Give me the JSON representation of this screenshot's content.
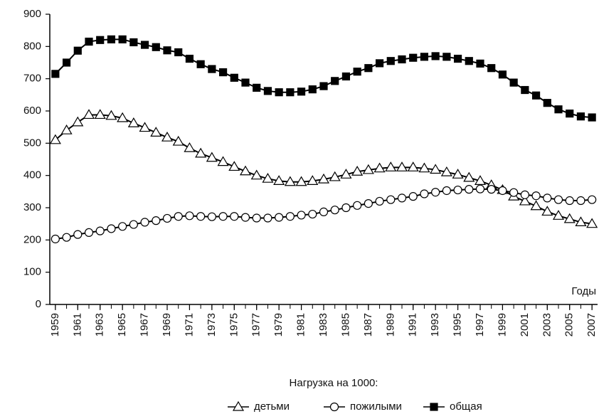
{
  "chart_data": {
    "type": "line",
    "xlabel": "Годы",
    "legend_title": "Нагрузка на 1000:",
    "legend": "bottom",
    "x": [
      1959,
      1960,
      1961,
      1962,
      1963,
      1964,
      1965,
      1966,
      1967,
      1968,
      1969,
      1970,
      1971,
      1972,
      1973,
      1974,
      1975,
      1976,
      1977,
      1978,
      1979,
      1980,
      1981,
      1982,
      1983,
      1984,
      1985,
      1986,
      1987,
      1988,
      1989,
      1990,
      1991,
      1992,
      1993,
      1994,
      1995,
      1996,
      1997,
      1998,
      1999,
      2000,
      2001,
      2002,
      2003,
      2004,
      2005,
      2006,
      2007
    ],
    "series": [
      {
        "name": "детьми",
        "color": "#000000",
        "marker": "triangle",
        "values": [
          510,
          540,
          565,
          588,
          588,
          585,
          578,
          562,
          548,
          533,
          518,
          505,
          485,
          468,
          455,
          442,
          427,
          413,
          400,
          390,
          383,
          380,
          380,
          383,
          388,
          395,
          403,
          412,
          417,
          422,
          425,
          425,
          425,
          422,
          418,
          410,
          403,
          393,
          383,
          370,
          355,
          335,
          320,
          305,
          288,
          275,
          265,
          255,
          250
        ]
      },
      {
        "name": "пожилыми",
        "color": "#000000",
        "marker": "circle",
        "values": [
          203,
          208,
          217,
          223,
          228,
          235,
          242,
          248,
          255,
          260,
          267,
          273,
          275,
          273,
          272,
          273,
          273,
          270,
          268,
          268,
          270,
          273,
          277,
          280,
          287,
          293,
          300,
          307,
          313,
          320,
          325,
          330,
          335,
          343,
          348,
          353,
          355,
          357,
          358,
          357,
          353,
          347,
          340,
          337,
          330,
          325,
          322,
          322,
          325
        ]
      },
      {
        "name": "общая",
        "color": "#000000",
        "marker": "square",
        "values": [
          715,
          750,
          787,
          815,
          820,
          822,
          822,
          813,
          805,
          798,
          788,
          782,
          762,
          745,
          730,
          720,
          703,
          688,
          672,
          662,
          658,
          658,
          660,
          667,
          677,
          693,
          707,
          722,
          733,
          748,
          755,
          760,
          765,
          768,
          770,
          768,
          762,
          755,
          747,
          733,
          713,
          688,
          665,
          648,
          625,
          605,
          592,
          583,
          580
        ]
      }
    ],
    "xlim": [
      1958.5,
      2007.5
    ],
    "xticks": [
      1959,
      1961,
      1963,
      1965,
      1967,
      1969,
      1971,
      1973,
      1975,
      1977,
      1979,
      1981,
      1983,
      1985,
      1987,
      1989,
      1991,
      1993,
      1995,
      1997,
      1999,
      2001,
      2003,
      2005,
      2007
    ],
    "ylim": [
      0,
      900
    ],
    "yticks": [
      0,
      100,
      200,
      300,
      400,
      500,
      600,
      700,
      800,
      900
    ]
  }
}
